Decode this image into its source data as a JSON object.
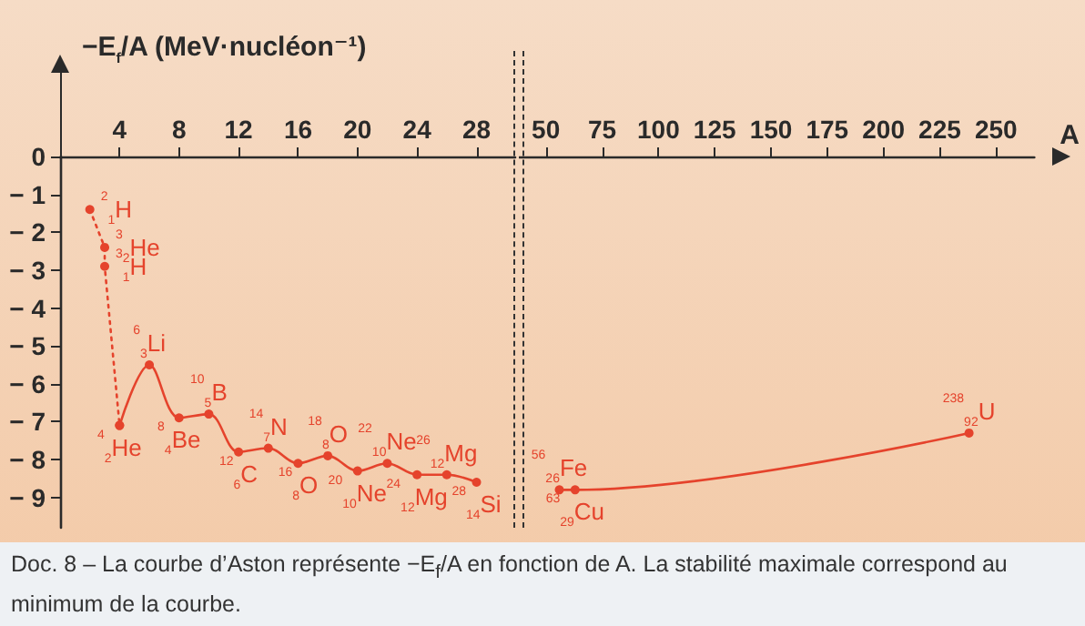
{
  "chart_data": [
    {
      "type": "line",
      "ylabel": "−E$_{f}$/A (MeV·nucléon⁻¹)",
      "xlim": [
        0,
        30.6
      ],
      "xticks": [
        4,
        8,
        12,
        16,
        20,
        24,
        28
      ],
      "ylim": [
        -9.8,
        0
      ],
      "yticks": [
        0,
        -1,
        -2,
        -3,
        -4,
        -5,
        -6,
        -7,
        -8,
        -9
      ],
      "marker": "circle",
      "series": [
        {
          "color": "#e5432c",
          "line_style": "dotted",
          "x": [
            2,
            3,
            3,
            4
          ],
          "values": [
            -1.4,
            -2.4,
            -2.9,
            -7.1
          ]
        },
        {
          "color": "#e5432c",
          "line_style": "solid",
          "x": [
            4,
            6,
            8,
            10,
            12,
            14,
            16,
            18,
            20,
            22,
            24,
            26,
            28
          ],
          "values": [
            -7.1,
            -5.5,
            -6.9,
            -6.8,
            -7.8,
            -7.7,
            -8.1,
            -7.9,
            -8.3,
            -8.1,
            -8.4,
            -8.4,
            -8.6
          ]
        }
      ],
      "annotations": [
        {
          "text": "$^{2}$$_{1}$H",
          "x": 2,
          "y": -1.4
        },
        {
          "text": "$^{3}$$_{2}$He",
          "x": 3,
          "y": -2.4
        },
        {
          "text": "$^{3}$$_{1}$H",
          "x": 3,
          "y": -2.9
        },
        {
          "text": "$^{4}$$_{2}$He",
          "x": 4,
          "y": -7.1
        },
        {
          "text": "$^{6}$$_{3}$Li",
          "x": 6,
          "y": -5.5
        },
        {
          "text": "$^{8}$$_{4}$Be",
          "x": 8,
          "y": -6.9
        },
        {
          "text": "$^{10}$$_{5}$B",
          "x": 10,
          "y": -6.8
        },
        {
          "text": "$^{12}$$_{6}$C",
          "x": 12,
          "y": -7.8
        },
        {
          "text": "$^{14}$$_{7}$N",
          "x": 14,
          "y": -7.7
        },
        {
          "text": "$^{16}$$_{8}$O",
          "x": 16,
          "y": -8.1
        },
        {
          "text": "$^{18}$$_{8}$O",
          "x": 18,
          "y": -7.9
        },
        {
          "text": "$^{20}$$_{10}$Ne",
          "x": 20,
          "y": -8.3
        },
        {
          "text": "$^{22}$$_{10}$Ne",
          "x": 22,
          "y": -8.1
        },
        {
          "text": "$^{24}$$_{12}$Mg",
          "x": 24,
          "y": -8.4
        },
        {
          "text": "$^{26}$$_{12}$Mg",
          "x": 26,
          "y": -8.4
        },
        {
          "text": "$^{28}$$_{14}$Si",
          "x": 28,
          "y": -8.6
        },
        "Doc. 8 – La courbe d’Aston représente −E$_{f}$/A en fonction de A. La stabilité maximale correspond au minimum de la courbe."
      ]
    },
    {
      "type": "line",
      "xlabel": "A",
      "xlim": [
        38,
        267
      ],
      "xticks": [
        50,
        75,
        100,
        125,
        150,
        175,
        200,
        225,
        250
      ],
      "ylim": [
        -9.8,
        0
      ],
      "tick_labels": "x",
      "marker": "circle",
      "series": [
        {
          "color": "#e5432c",
          "line_style": "solid",
          "x": [
            56,
            63,
            238
          ],
          "values": [
            -8.8,
            -8.8,
            -7.3
          ]
        }
      ],
      "annotations": [
        {
          "text": "$^{56}$$_{26}$Fe",
          "x": 56,
          "y": -8.8
        },
        {
          "text": "$^{63}$$_{29}$Cu",
          "x": 63,
          "y": -8.8
        },
        {
          "text": "$^{238}$$_{92}$U",
          "x": 238,
          "y": -7.3
        }
      ]
    }
  ]
}
